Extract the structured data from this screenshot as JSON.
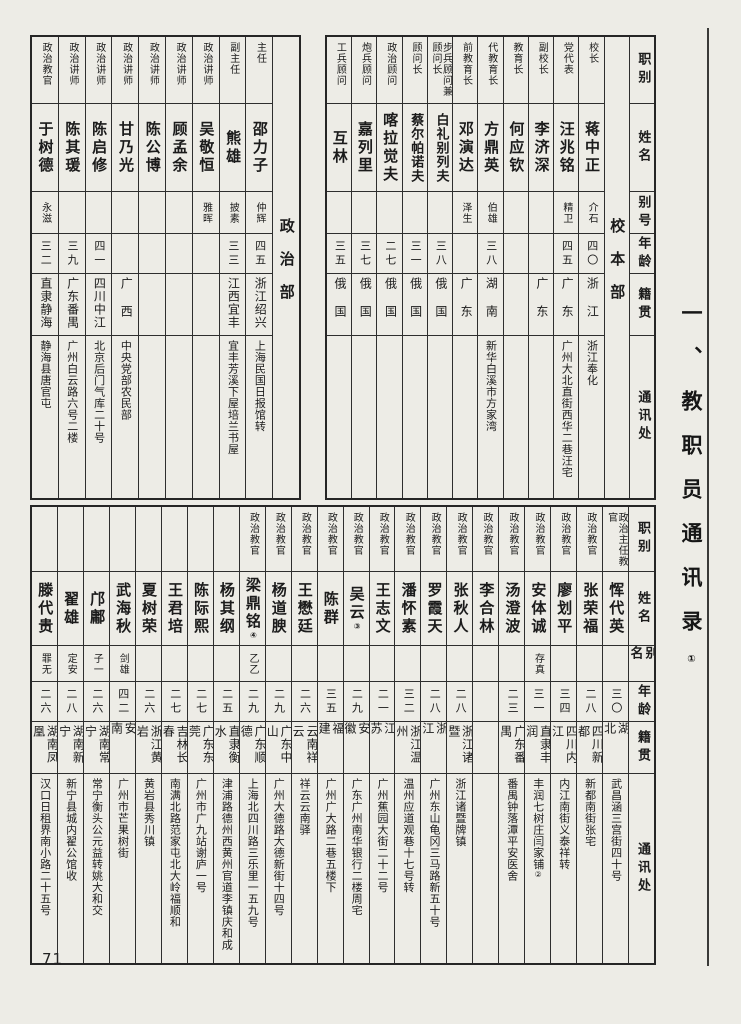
{
  "page": {
    "number": "71",
    "margin_title": "一、教职员通讯录",
    "margin_title_note": "①"
  },
  "table_top_right": {
    "section_label": "校本部",
    "headers": [
      "职别",
      "姓名",
      "别号",
      "年龄",
      "籍贯",
      "通讯处"
    ],
    "people": [
      {
        "role": "校长",
        "name": "蒋中正",
        "alias": "介石",
        "age": "四〇",
        "origin": "浙江",
        "address": "浙江奉化"
      },
      {
        "role": "党代表",
        "name": "汪兆铭",
        "alias": "精卫",
        "age": "四五",
        "origin": "广东",
        "address": "广州大北直街西华二巷汪宅"
      },
      {
        "role": "副校长",
        "name": "李济深",
        "alias": "",
        "age": "",
        "origin": "广东",
        "address": ""
      },
      {
        "role": "教育长",
        "name": "何应钦",
        "alias": "",
        "age": "",
        "origin": "",
        "address": ""
      },
      {
        "role": "代教育长",
        "name": "方鼎英",
        "alias": "伯雄",
        "age": "三八",
        "origin": "湖南",
        "address": "新华白溪市方家湾"
      },
      {
        "role": "前教育长",
        "name": "邓演达",
        "alias": "泽生",
        "age": "",
        "origin": "广东",
        "address": ""
      },
      {
        "role": "步兵顾问兼顾问长",
        "name": "白礼别列夫",
        "alias": "",
        "age": "三八",
        "origin": "俄国",
        "address": ""
      },
      {
        "role": "顾问长",
        "name": "蔡尔帕诺夫",
        "alias": "",
        "age": "三一",
        "origin": "俄国",
        "address": ""
      },
      {
        "role": "政治顾问",
        "name": "喀拉觉夫",
        "alias": "",
        "age": "二七",
        "origin": "俄国",
        "address": ""
      },
      {
        "role": "炮兵顾问",
        "name": "嘉列里",
        "alias": "",
        "age": "三七",
        "origin": "俄国",
        "address": ""
      },
      {
        "role": "工兵顾问",
        "name": "互林",
        "alias": "",
        "age": "三五",
        "origin": "俄国",
        "address": ""
      }
    ]
  },
  "table_top_left": {
    "section_label": "政治部",
    "people": [
      {
        "role": "主任",
        "name": "邵力子",
        "alias": "仲辉",
        "age": "四五",
        "origin": "浙江绍兴",
        "address": "上海民国日报馆转"
      },
      {
        "role": "副主任",
        "name": "熊雄",
        "alias": "披素",
        "age": "三三",
        "origin": "江西宜丰",
        "address": "宜丰芳溪下屋培兰书屋"
      },
      {
        "role": "政治讲师",
        "name": "吴敬恒",
        "alias": "雅晖",
        "age": "",
        "origin": "",
        "address": ""
      },
      {
        "role": "政治讲师",
        "name": "顾孟余",
        "alias": "",
        "age": "",
        "origin": "",
        "address": ""
      },
      {
        "role": "政治讲师",
        "name": "陈公博",
        "alias": "",
        "age": "",
        "origin": "",
        "address": ""
      },
      {
        "role": "政治讲师",
        "name": "甘乃光",
        "alias": "",
        "age": "",
        "origin": "广西",
        "address": "中央党部农民部"
      },
      {
        "role": "政治讲师",
        "name": "陈启修",
        "alias": "",
        "age": "四一",
        "origin": "四川中江",
        "address": "北京后门气库二十号"
      },
      {
        "role": "政治讲师",
        "name": "陈其瑗",
        "alias": "",
        "age": "三九",
        "origin": "广东番禺",
        "address": "广州白云路六号二楼"
      },
      {
        "role": "政治教官",
        "name": "于树德",
        "alias": "永滋",
        "age": "三二",
        "origin": "直隶静海",
        "address": "静海县唐官屯"
      }
    ]
  },
  "table_bottom": {
    "headers": [
      "职别",
      "姓名",
      "别名",
      "年龄",
      "籍贯",
      "通讯处"
    ],
    "people": [
      {
        "role": "政治主任教官",
        "name": "恽代英",
        "alias": "",
        "age": "三〇",
        "origin": "湖北",
        "address": "武昌涵三宫街四十号"
      },
      {
        "role": "政治教官",
        "name": "张荣福",
        "alias": "",
        "age": "二八",
        "origin": "四川新都",
        "address": "新都南街张宅"
      },
      {
        "role": "政治教官",
        "name": "廖划平",
        "alias": "",
        "age": "三四",
        "origin": "四川内江",
        "address": "内江南街义泰祥转"
      },
      {
        "role": "政治教官",
        "name": "安体诚",
        "alias": "存真",
        "age": "三一",
        "origin": "直隶丰润",
        "address": "丰润七树庄闫家铺",
        "address_note": "②"
      },
      {
        "role": "政治教官",
        "name": "汤澄波",
        "alias": "",
        "age": "二三",
        "origin": "广东番禺",
        "address": "番禺钟落潭平安医舍"
      },
      {
        "role": "政治教官",
        "name": "李合林",
        "alias": "",
        "age": "",
        "origin": "",
        "address": ""
      },
      {
        "role": "政治教官",
        "name": "张秋人",
        "alias": "",
        "age": "二八",
        "origin": "浙江诸暨",
        "address": "浙江诸暨牌镇"
      },
      {
        "role": "政治教官",
        "name": "罗霞天",
        "alias": "",
        "age": "二八",
        "origin": "浙江",
        "address": "广州东山龟冈三马路新五十号"
      },
      {
        "role": "政治教官",
        "name": "潘怀素",
        "alias": "",
        "age": "三二",
        "origin": "浙江温州",
        "address": "温州应道观巷十七号转"
      },
      {
        "role": "政治教官",
        "name": "王志文",
        "alias": "",
        "age": "二一",
        "origin": "江苏",
        "address": "广州蕉园大街二十二号"
      },
      {
        "role": "政治教官",
        "name": "吴云",
        "name_note": "③",
        "alias": "",
        "age": "二九",
        "origin": "安徽",
        "address": "广东广州南华银行二楼周宅"
      },
      {
        "role": "政治教官",
        "name": "陈群",
        "alias": "",
        "age": "三五",
        "origin": "福建",
        "address": "广州广大路二巷五楼下"
      },
      {
        "role": "政治教官",
        "name": "王懋廷",
        "alias": "",
        "age": "二六",
        "origin": "云南祥云",
        "address": "祥云云南驿"
      },
      {
        "role": "政治教官",
        "name": "杨道腴",
        "alias": "",
        "age": "二九",
        "origin": "广东中山",
        "address": "广州大德路大德新街十四号"
      },
      {
        "role": "政治教官",
        "name": "梁鼎铭",
        "name_note": "④",
        "alias": "乙乙",
        "age": "二九",
        "origin": "广东顺德",
        "address": "上海北四川路三乐里一五九号"
      },
      {
        "role": "",
        "name": "杨其纲",
        "alias": "",
        "age": "二五",
        "origin": "直隶衡水",
        "address": "津浦路德州西黄州官道李镇庆和成"
      },
      {
        "role": "",
        "name": "陈际熙",
        "alias": "",
        "age": "二七",
        "origin": "广东东莞",
        "address": "广州市广九站谢庐一号"
      },
      {
        "role": "",
        "name": "王君培",
        "alias": "",
        "age": "二七",
        "origin": "吉林长春",
        "address": "南满北路范家屯北大岭福顺和"
      },
      {
        "role": "",
        "name": "夏树荣",
        "alias": "",
        "age": "二六",
        "origin": "浙江黄岩",
        "address": "黄岩县秀川镇"
      },
      {
        "role": "",
        "name": "武海秋",
        "alias": "剑雄",
        "age": "四二",
        "origin": "安南",
        "address": "广州市芒果树街"
      },
      {
        "role": "",
        "name": "邝鄘",
        "alias": "子一",
        "age": "二六",
        "origin": "湖南常宁",
        "address": "常宁衡头公元益转姚大和交"
      },
      {
        "role": "",
        "name": "翟雄",
        "alias": "定安",
        "age": "二八",
        "origin": "湖南新宁",
        "address": "新宁县城内翟公馆收"
      },
      {
        "role": "",
        "name": "滕代贵",
        "alias": "罪无",
        "age": "二六",
        "origin": "湖南凤凰",
        "address": "汉口日租界南小路二十五号"
      }
    ]
  }
}
